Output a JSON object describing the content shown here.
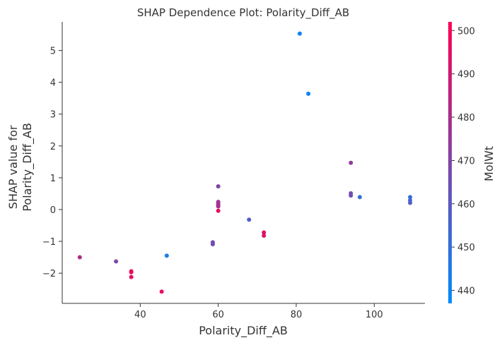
{
  "chart_data": {
    "type": "scatter",
    "title": "SHAP Dependence Plot: Polarity_Diff_AB",
    "xlabel": "Polarity_Diff_AB",
    "ylabel_lines": [
      "SHAP value for",
      "Polarity_Diff_AB"
    ],
    "xlim": [
      20,
      113
    ],
    "ylim": [
      -2.95,
      5.9
    ],
    "xticks": [
      40,
      60,
      80,
      100
    ],
    "yticks": [
      -2,
      -1,
      0,
      1,
      2,
      3,
      4,
      5
    ],
    "grid": false,
    "colorbar": {
      "label": "MolWt",
      "range": [
        437,
        502
      ],
      "ticks": [
        440,
        450,
        460,
        470,
        480,
        490,
        500
      ],
      "colors": [
        "#008bfb",
        "#ff0052"
      ]
    },
    "points": [
      {
        "x": 24.5,
        "y": -1.5,
        "c": 482
      },
      {
        "x": 33.8,
        "y": -1.63,
        "c": 468
      },
      {
        "x": 37.7,
        "y": -1.94,
        "c": 496
      },
      {
        "x": 37.7,
        "y": -1.97,
        "c": 497
      },
      {
        "x": 37.7,
        "y": -2.12,
        "c": 496
      },
      {
        "x": 45.5,
        "y": -2.58,
        "c": 496
      },
      {
        "x": 46.8,
        "y": -1.45,
        "c": 443
      },
      {
        "x": 58.6,
        "y": -1.03,
        "c": 466
      },
      {
        "x": 58.6,
        "y": -1.09,
        "c": 466
      },
      {
        "x": 60.0,
        "y": 0.73,
        "c": 470
      },
      {
        "x": 60.0,
        "y": 0.24,
        "c": 476
      },
      {
        "x": 60.0,
        "y": 0.19,
        "c": 476
      },
      {
        "x": 60.0,
        "y": 0.14,
        "c": 478
      },
      {
        "x": 60.0,
        "y": 0.1,
        "c": 480
      },
      {
        "x": 60.0,
        "y": -0.04,
        "c": 496
      },
      {
        "x": 67.9,
        "y": -0.32,
        "c": 458
      },
      {
        "x": 71.7,
        "y": -0.72,
        "c": 494
      },
      {
        "x": 71.7,
        "y": -0.82,
        "c": 492
      },
      {
        "x": 80.9,
        "y": 5.53,
        "c": 441
      },
      {
        "x": 83.1,
        "y": 3.64,
        "c": 441
      },
      {
        "x": 94.0,
        "y": 1.47,
        "c": 474
      },
      {
        "x": 94.0,
        "y": 0.51,
        "c": 466
      },
      {
        "x": 94.0,
        "y": 0.44,
        "c": 466
      },
      {
        "x": 96.3,
        "y": 0.39,
        "c": 450
      },
      {
        "x": 109.2,
        "y": 0.39,
        "c": 450
      },
      {
        "x": 109.2,
        "y": 0.29,
        "c": 455
      },
      {
        "x": 109.2,
        "y": 0.21,
        "c": 458
      }
    ]
  }
}
